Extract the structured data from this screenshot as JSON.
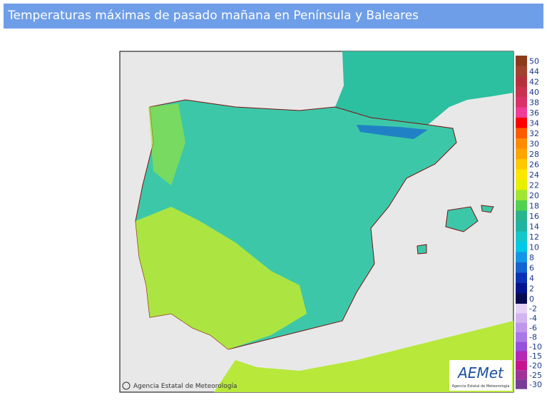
{
  "header": {
    "title": "Temperaturas máximas de pasado mañana en Península y Baleares"
  },
  "map": {
    "credit": "Agencia Estatal de Meteorología",
    "logo": "AEMet",
    "logo_subtitle": "Agencia Estatal de Meteorología"
  },
  "legend": {
    "positive": [
      {
        "label": 50,
        "color": "#8b3a1a"
      },
      {
        "label": 44,
        "color": "#a0422d"
      },
      {
        "label": 42,
        "color": "#b4303c"
      },
      {
        "label": 40,
        "color": "#c8324e"
      },
      {
        "label": 38,
        "color": "#dc3068"
      },
      {
        "label": 36,
        "color": "#f03c96"
      },
      {
        "label": 34,
        "color": "#ff0000"
      },
      {
        "label": 32,
        "color": "#ff5a00"
      },
      {
        "label": 30,
        "color": "#ff8c00"
      },
      {
        "label": 28,
        "color": "#ffa500"
      },
      {
        "label": 26,
        "color": "#ffc800"
      },
      {
        "label": 24,
        "color": "#ffe600"
      },
      {
        "label": 22,
        "color": "#e6f000"
      },
      {
        "label": 20,
        "color": "#a0e632"
      },
      {
        "label": 18,
        "color": "#50d250"
      },
      {
        "label": 16,
        "color": "#28b48c"
      },
      {
        "label": 14,
        "color": "#1eb4a0"
      },
      {
        "label": 12,
        "color": "#14c8c8"
      },
      {
        "label": 10,
        "color": "#00c8e6"
      },
      {
        "label": 8,
        "color": "#1496e6"
      },
      {
        "label": 6,
        "color": "#1464d2"
      },
      {
        "label": 4,
        "color": "#0a32b4"
      },
      {
        "label": 2,
        "color": "#00148c"
      },
      {
        "label": 0,
        "color": "#0a0a50"
      }
    ],
    "negative": [
      {
        "label": -2,
        "color": "#e6d2f5"
      },
      {
        "label": -4,
        "color": "#d2b4f0"
      },
      {
        "label": -6,
        "color": "#be96eb"
      },
      {
        "label": -8,
        "color": "#aa78e6"
      },
      {
        "label": -10,
        "color": "#9650dc"
      },
      {
        "label": -15,
        "color": "#b428b4"
      },
      {
        "label": -20,
        "color": "#c8148c"
      },
      {
        "label": -25,
        "color": "#a03296"
      },
      {
        "label": -30,
        "color": "#783c96"
      }
    ]
  }
}
